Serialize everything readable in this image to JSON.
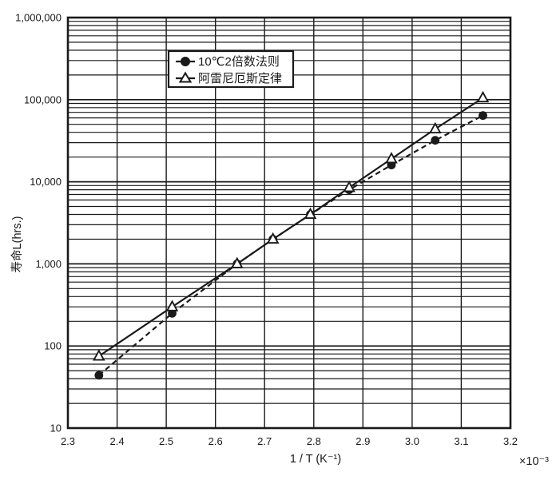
{
  "figure": {
    "background": "#ffffff",
    "foreground": "#1a1a1a"
  },
  "chart_data": {
    "type": "line",
    "title": "",
    "y_scale": "log",
    "xlabel": "1 / T (K⁻¹)",
    "x_multiplier_label": "×10⁻³",
    "ylabel": "寿命L(hrs.)",
    "xlim": [
      2.3,
      3.2
    ],
    "ylim": [
      10,
      1000000
    ],
    "grid": {
      "vertical": "every 0.1",
      "horizontal": "log decades with 2-9 minors"
    },
    "x_ticks": [
      2.3,
      2.4,
      2.5,
      2.6,
      2.7,
      2.8,
      2.9,
      3.0,
      3.1,
      3.2
    ],
    "x_tick_labels": [
      "2.3",
      "2.4",
      "2.5",
      "2.6",
      "2.7",
      "2.8",
      "2.9",
      "3.0",
      "3.1",
      "3.2"
    ],
    "y_ticks": [
      10,
      100,
      1000,
      10000,
      100000,
      1000000
    ],
    "y_tick_labels": [
      "10",
      "100",
      "1,000",
      "10,000",
      "100,000",
      "1,000,000"
    ],
    "x": [
      2.363,
      2.512,
      2.644,
      2.717,
      2.793,
      2.872,
      2.958,
      3.047,
      3.144
    ],
    "series": [
      {
        "name": "10℃2倍数法则",
        "line_style": "dashed",
        "marker": "filled-circle",
        "values": [
          44,
          250,
          1000,
          2000,
          4000,
          8000,
          16000,
          32000,
          64000
        ]
      },
      {
        "name": "阿雷尼厄斯定律",
        "line_style": "solid",
        "marker": "open-triangle",
        "values": [
          75,
          300,
          1000,
          2000,
          4000,
          8500,
          19000,
          44000,
          105000
        ]
      }
    ],
    "legend": {
      "position": "inside-top-left",
      "items": [
        "10℃2倍数法则",
        "阿雷尼厄斯定律"
      ]
    }
  }
}
